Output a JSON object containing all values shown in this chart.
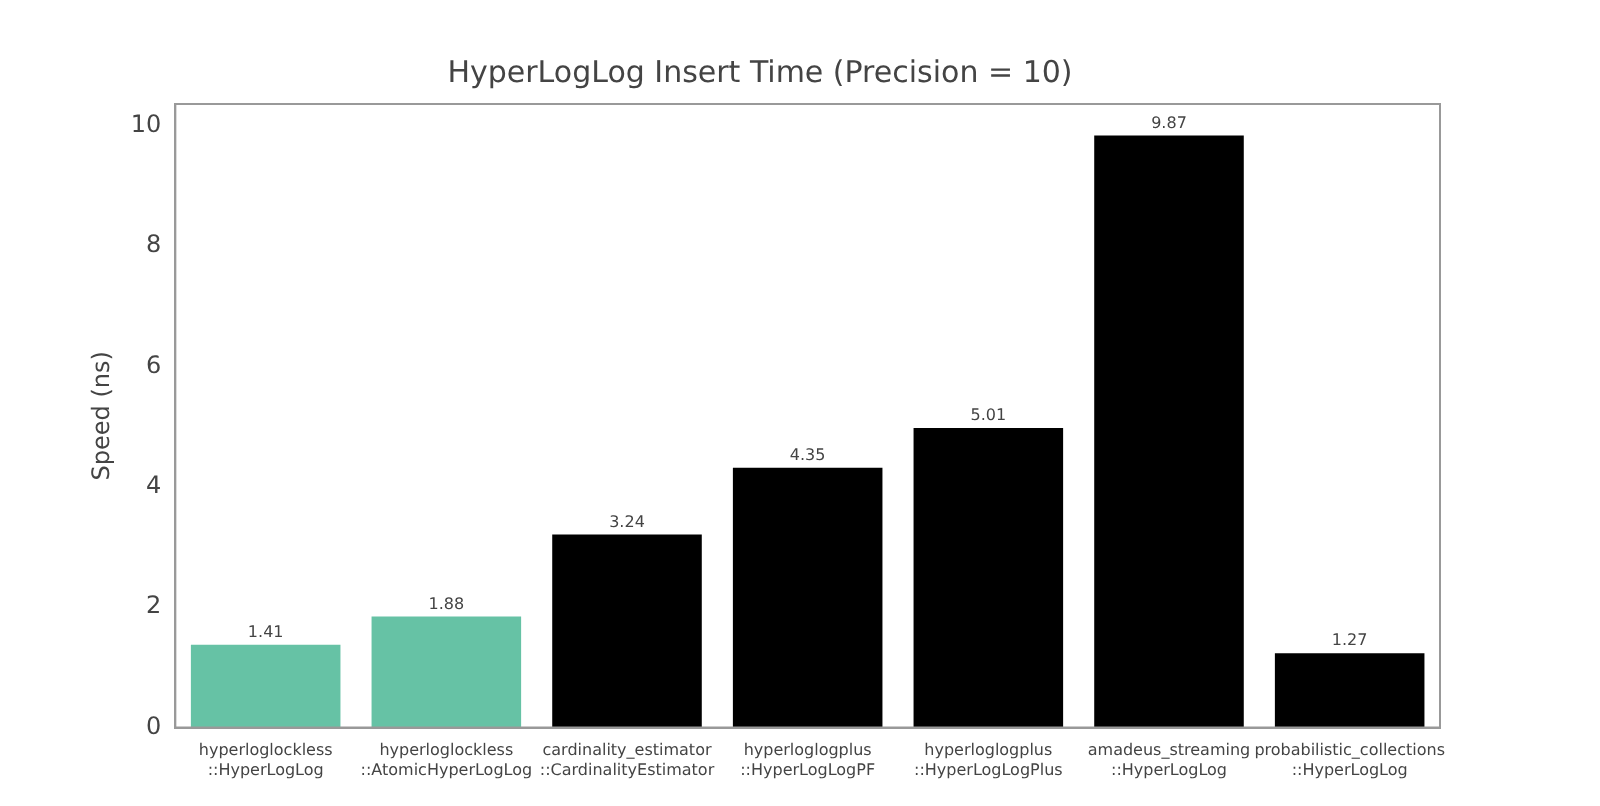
{
  "chart_data": {
    "type": "bar",
    "title": "HyperLogLog Insert Time (Precision = 10)",
    "ylabel": "Speed (ns)",
    "categories": [
      "hyperloglockless\n::HyperLogLog",
      "hyperloglockless\n::AtomicHyperLogLog",
      "cardinality_estimator\n::CardinalityEstimator",
      "hyperloglogplus\n::HyperLogLogPF",
      "hyperloglogplus\n::HyperLogLogPlus",
      "amadeus_streaming\n::HyperLogLog",
      "probabilistic_collections\n::HyperLogLog"
    ],
    "values": [
      1.41,
      1.88,
      3.24,
      4.35,
      5.01,
      9.87,
      1.27
    ],
    "colors": [
      "#66c2a5",
      "#66c2a5",
      "#000000",
      "#000000",
      "#000000",
      "#000000",
      "#000000"
    ],
    "ylim": [
      0,
      10.36
    ],
    "yticks": [
      0,
      2,
      4,
      6,
      8,
      10
    ],
    "data_labels": true,
    "grid": false,
    "legend": false
  }
}
